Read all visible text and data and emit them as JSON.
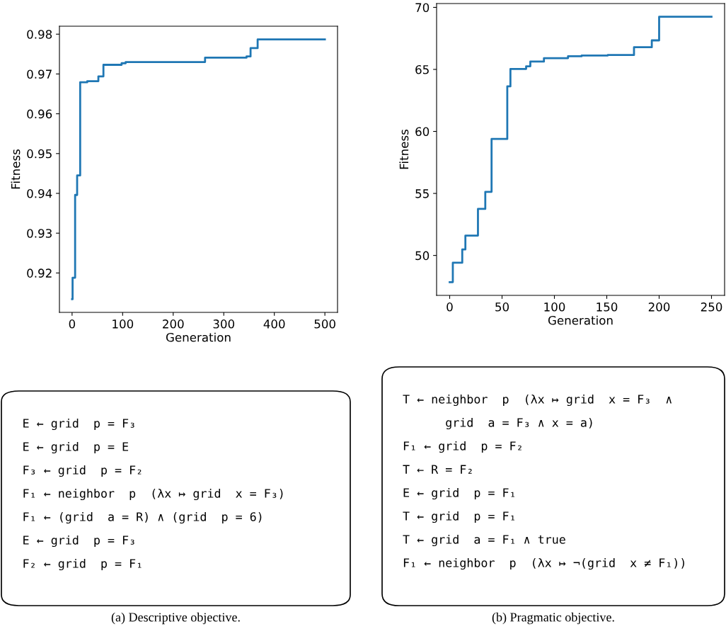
{
  "chart_data": [
    {
      "type": "step",
      "xlabel": "Generation",
      "ylabel": "Fitness",
      "x": [
        0,
        1,
        6,
        10,
        16,
        30,
        52,
        62,
        98,
        106,
        263,
        345,
        353,
        367,
        500
      ],
      "series": [
        {
          "color": "#1f77b4",
          "values": [
            0.9134,
            0.9188,
            0.9396,
            0.9445,
            0.9679,
            0.9682,
            0.9694,
            0.9723,
            0.9727,
            0.973,
            0.9741,
            0.9744,
            0.9765,
            0.9787,
            0.9787
          ]
        }
      ],
      "xlim": [
        -25,
        525
      ],
      "ylim": [
        0.9101,
        0.982
      ],
      "xticks": [
        0,
        100,
        200,
        300,
        400,
        500
      ],
      "yticks": [
        {
          "value": 0.92,
          "label": "0.92"
        },
        {
          "value": 0.93,
          "label": "0.93"
        },
        {
          "value": 0.94,
          "label": "0.94"
        },
        {
          "value": 0.95,
          "label": "0.95"
        },
        {
          "value": 0.96,
          "label": "0.96"
        },
        {
          "value": 0.97,
          "label": "0.97"
        },
        {
          "value": 0.98,
          "label": "0.98"
        }
      ]
    },
    {
      "type": "step",
      "xlabel": "Generation",
      "ylabel": "Fitness",
      "x": [
        0,
        3,
        12,
        15,
        27,
        34,
        40,
        55,
        58,
        73,
        77,
        90,
        113,
        126,
        151,
        176,
        193,
        200,
        250
      ],
      "series": [
        {
          "color": "#1f77b4",
          "values": [
            47.85,
            49.41,
            50.48,
            51.6,
            53.75,
            55.13,
            59.39,
            63.63,
            65.04,
            65.25,
            65.63,
            65.91,
            66.06,
            66.12,
            66.16,
            66.79,
            67.34,
            69.24,
            69.24
          ]
        }
      ],
      "xlim": [
        -12.5,
        262.5
      ],
      "ylim": [
        46.78,
        70.31
      ],
      "xticks": [
        0,
        50,
        100,
        150,
        200,
        250
      ],
      "yticks": [
        50,
        55,
        60,
        65,
        70
      ]
    },
    {
      "type": "other",
      "title": "(a) Descriptive objective.",
      "annotations": [
        "E ← grid  p = F₃",
        "E ← grid  p = E",
        "F₃ ← grid  p = F₂",
        "F₁ ← neighbor  p  (λx ↦ grid  x = F₃)",
        "F₁ ← (grid  a = R) ∧ (grid  p = 6)",
        "E ← grid  p = F₃",
        "F₂ ← grid  p = F₁"
      ]
    },
    {
      "type": "other",
      "title": "(b) Pragmatic objective.",
      "annotations": [
        "T ← neighbor  p  (λx ↦ grid  x = F₃  ∧",
        "      grid  a = F₃ ∧ x = a)",
        "F₁ ← grid  p = F₂",
        "T ← R = F₂",
        "E ← grid  p = F₁",
        "T ← grid  p = F₁",
        "T ← grid  a = F₁ ∧ true",
        "F₁ ← neighbor  p  (λx ↦ ¬(grid  x ≠ F₁))"
      ]
    }
  ]
}
